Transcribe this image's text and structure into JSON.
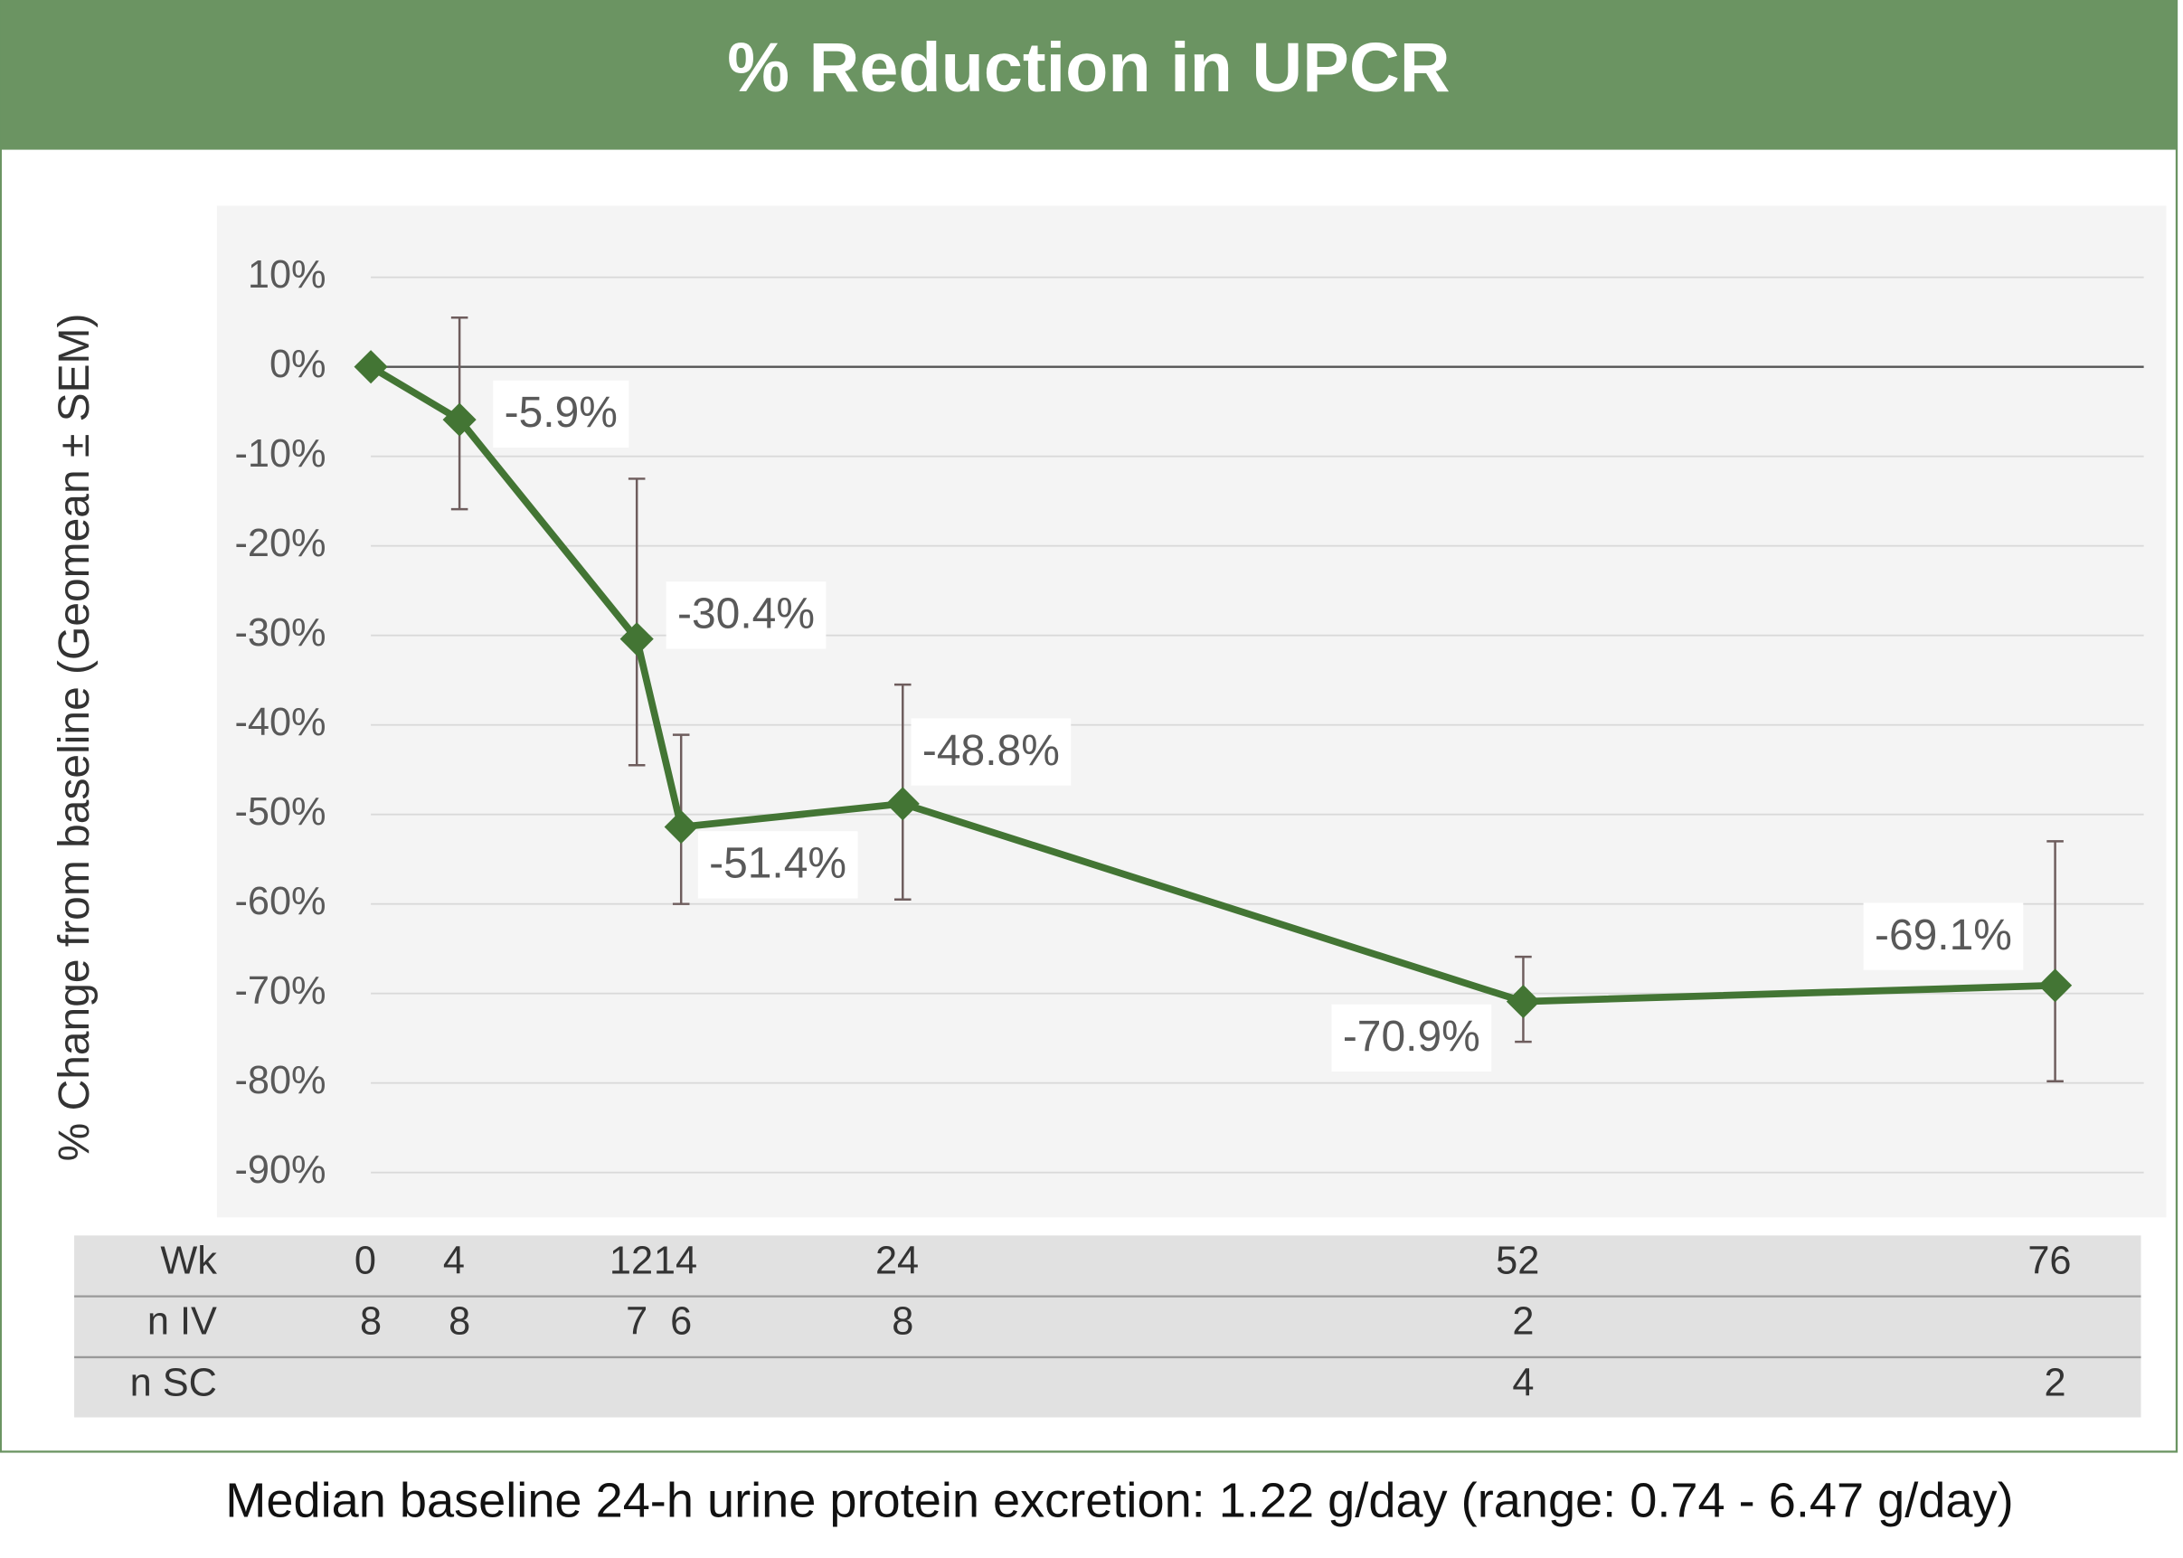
{
  "chart_data": {
    "type": "line",
    "title": "% Reduction in UPCR",
    "y_label": "% Change from baseline  (Geomean ± SEM)",
    "x": [
      0,
      4,
      12,
      14,
      24,
      52,
      76
    ],
    "values": [
      0,
      -5.9,
      -30.4,
      -51.4,
      -48.8,
      -70.9,
      -69.1
    ],
    "value_labels": [
      null,
      "-5.9%",
      "-30.4%",
      "-51.4%",
      "-48.8%",
      "-70.9%",
      "-69.1%"
    ],
    "error_plus": [
      null,
      11.4,
      17.9,
      10.3,
      13.3,
      5.0,
      16.1
    ],
    "error_minus": [
      null,
      10.0,
      14.1,
      8.6,
      10.7,
      4.5,
      10.7
    ],
    "color": "#437534",
    "xlim": [
      0,
      80
    ],
    "ylim": [
      -95,
      18
    ],
    "yticks": [
      {
        "value": 10,
        "label": "10%"
      },
      {
        "value": 0,
        "label": "0%"
      },
      {
        "value": -10,
        "label": "-10%"
      },
      {
        "value": -20,
        "label": "-20%"
      },
      {
        "value": -30,
        "label": "-30%"
      },
      {
        "value": -40,
        "label": "-40%"
      },
      {
        "value": -50,
        "label": "-50%"
      },
      {
        "value": -60,
        "label": "-60%"
      },
      {
        "value": -70,
        "label": "-70%"
      },
      {
        "value": -80,
        "label": "-80%"
      },
      {
        "value": -90,
        "label": "-90%"
      }
    ],
    "grid": true
  },
  "table": {
    "rows": [
      {
        "label": "Wk"
      },
      {
        "label": "n IV",
        "cells": [
          8,
          8,
          7,
          6,
          8,
          2,
          null
        ]
      },
      {
        "label": "n SC",
        "cells": [
          null,
          null,
          null,
          null,
          null,
          4,
          2
        ]
      }
    ]
  },
  "footnote": "Median baseline 24-h urine protein excretion: 1.22 g/day (range: 0.74 - 6.47 g/day)"
}
